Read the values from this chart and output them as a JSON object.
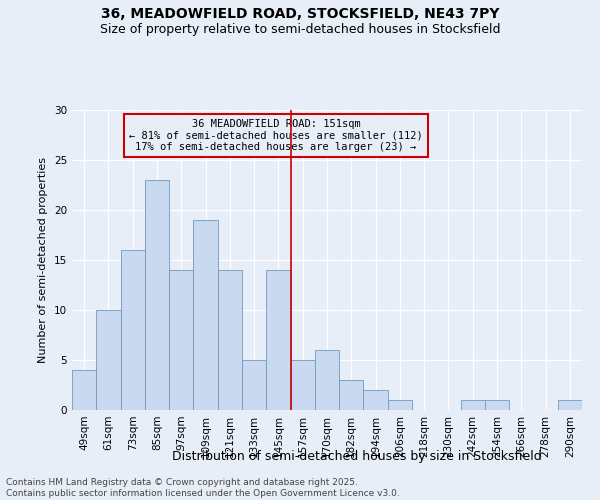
{
  "title1": "36, MEADOWFIELD ROAD, STOCKSFIELD, NE43 7PY",
  "title2": "Size of property relative to semi-detached houses in Stocksfield",
  "xlabel": "Distribution of semi-detached houses by size in Stocksfield",
  "ylabel": "Number of semi-detached properties",
  "categories": [
    "49sqm",
    "61sqm",
    "73sqm",
    "85sqm",
    "97sqm",
    "109sqm",
    "121sqm",
    "133sqm",
    "145sqm",
    "157sqm",
    "170sqm",
    "182sqm",
    "194sqm",
    "206sqm",
    "218sqm",
    "230sqm",
    "242sqm",
    "254sqm",
    "266sqm",
    "278sqm",
    "290sqm"
  ],
  "values": [
    4,
    10,
    16,
    23,
    14,
    19,
    14,
    5,
    14,
    5,
    6,
    3,
    2,
    1,
    0,
    0,
    1,
    1,
    0,
    0,
    1
  ],
  "bar_color": "#c9d9f0",
  "bar_edge_color": "#7099bb",
  "vline_x": 8.5,
  "vline_color": "#cc0000",
  "annotation_line1": "36 MEADOWFIELD ROAD: 151sqm",
  "annotation_line2": "← 81% of semi-detached houses are smaller (112)",
  "annotation_line3": "17% of semi-detached houses are larger (23) →",
  "annotation_box_color": "#cc0000",
  "ylim": [
    0,
    30
  ],
  "yticks": [
    0,
    5,
    10,
    15,
    20,
    25,
    30
  ],
  "background_color": "#e8eef8",
  "footer_text": "Contains HM Land Registry data © Crown copyright and database right 2025.\nContains public sector information licensed under the Open Government Licence v3.0.",
  "title1_fontsize": 10,
  "title2_fontsize": 9,
  "xlabel_fontsize": 9,
  "ylabel_fontsize": 8,
  "tick_fontsize": 7.5,
  "annotation_fontsize": 7.5,
  "footer_fontsize": 6.5
}
